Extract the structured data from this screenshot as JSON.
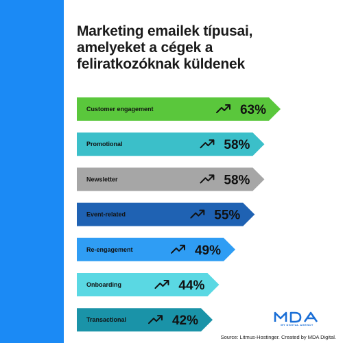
{
  "title_lines": [
    "Marketing emailek típusai,",
    "amelyeket a cégek a",
    "feliratkozóknak küldenek"
  ],
  "chart_data": {
    "type": "bar",
    "orientation": "horizontal",
    "categories": [
      "Customer engagement",
      "Promotional",
      "Newsletter",
      "Event-related",
      "Re-engagement",
      "Onboarding",
      "Transactional"
    ],
    "values": [
      63,
      58,
      58,
      55,
      49,
      44,
      42
    ],
    "value_labels": [
      "63%",
      "58%",
      "58%",
      "55%",
      "49%",
      "44%",
      "42%"
    ],
    "colors": [
      "#5ac73c",
      "#3bbfc9",
      "#a6a6a6",
      "#1f62b3",
      "#2f9df4",
      "#5ad8e3",
      "#1a93a8"
    ],
    "text_colors": [
      "#111111",
      "#111111",
      "#111111",
      "#111111",
      "#111111",
      "#111111",
      "#111111"
    ],
    "icon": "trending-up-icon",
    "grid": false,
    "legend": "none"
  },
  "accent_color": "#1b8af5",
  "logo": {
    "text": "MDA",
    "subtext": "MY DIGITAL AGENCY"
  },
  "source": "Source: Litmus-Hostinger. Created by MDA Digital."
}
